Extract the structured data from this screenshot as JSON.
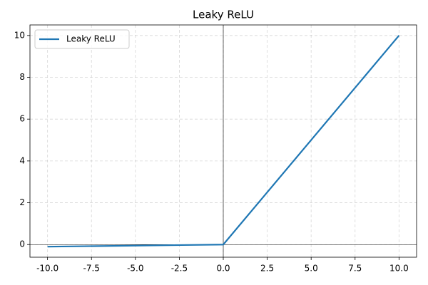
{
  "chart_data": {
    "type": "line",
    "title": "Leaky ReLU",
    "x": [
      -10,
      0,
      10
    ],
    "series": [
      {
        "name": "Leaky ReLU",
        "color": "#1f77b4",
        "values": [
          -0.1,
          0,
          10
        ]
      }
    ],
    "xlim": [
      -11,
      11
    ],
    "ylim": [
      -0.605,
      10.505
    ],
    "xticks": [
      {
        "value": -10,
        "label": "-10.0"
      },
      {
        "value": -7.5,
        "label": "-7.5"
      },
      {
        "value": -5,
        "label": "-5.0"
      },
      {
        "value": -2.5,
        "label": "-2.5"
      },
      {
        "value": 0,
        "label": "0.0"
      },
      {
        "value": 2.5,
        "label": "2.5"
      },
      {
        "value": 5,
        "label": "5.0"
      },
      {
        "value": 7.5,
        "label": "7.5"
      },
      {
        "value": 10,
        "label": "10.0"
      }
    ],
    "yticks": [
      0,
      2,
      4,
      6,
      8,
      10
    ],
    "grid": true,
    "legend": "upper left",
    "axhline": 0,
    "axvline": 0
  }
}
